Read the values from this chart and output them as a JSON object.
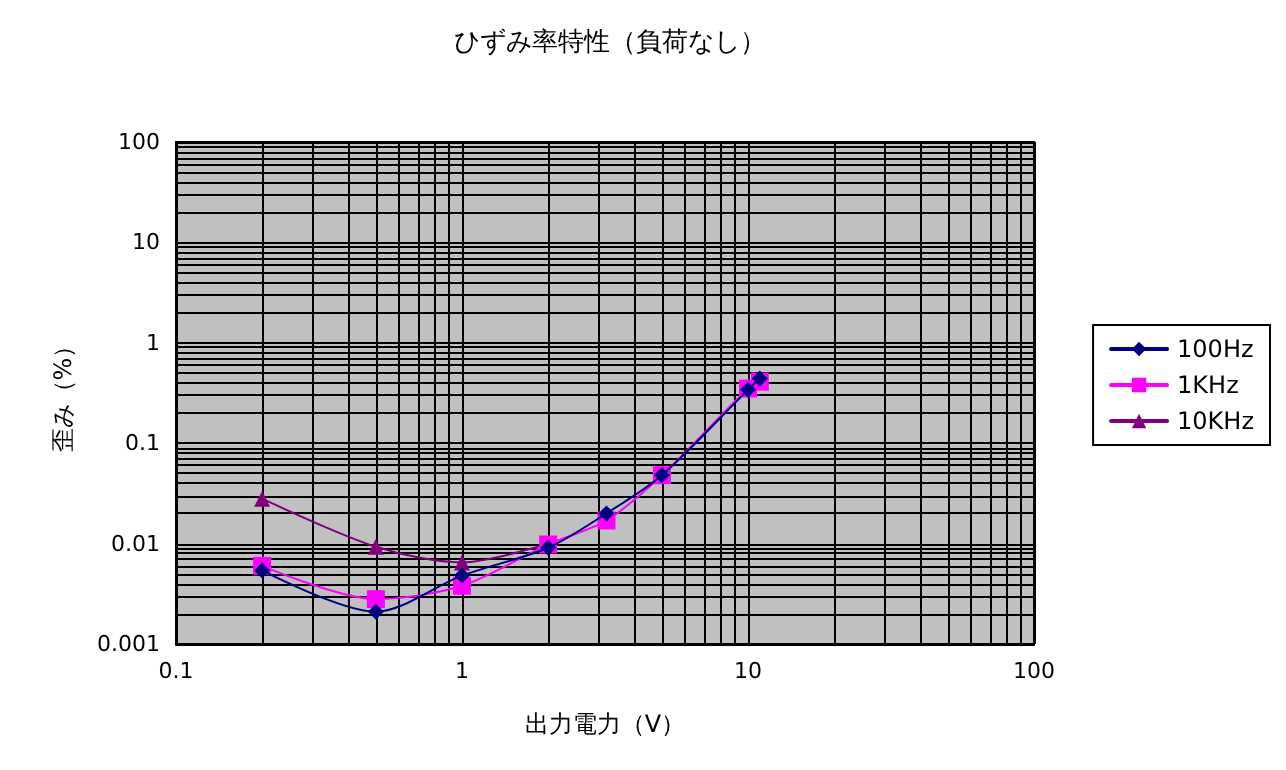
{
  "chart_data": {
    "type": "line",
    "title": "ひずみ率特性（負荷なし）",
    "xlabel": "出力電力（V）",
    "ylabel": "歪み（%）",
    "log": "xy",
    "grid": true,
    "legend": "right",
    "line_style": "solid",
    "xlim": [
      0.1,
      100
    ],
    "ylim": [
      0.001,
      100
    ],
    "xticks": [
      0.1,
      {
        "value": 0.2,
        "label": null
      },
      {
        "value": 0.3,
        "label": null
      },
      {
        "value": 0.4,
        "label": null
      },
      {
        "value": 0.5,
        "label": null
      },
      {
        "value": 0.6,
        "label": null
      },
      {
        "value": 0.7,
        "label": null
      },
      {
        "value": 0.8,
        "label": null
      },
      {
        "value": 0.9,
        "label": null
      },
      1,
      {
        "value": 2,
        "label": null
      },
      {
        "value": 3,
        "label": null
      },
      {
        "value": 4,
        "label": null
      },
      {
        "value": 5,
        "label": null
      },
      {
        "value": 6,
        "label": null
      },
      {
        "value": 7,
        "label": null
      },
      {
        "value": 8,
        "label": null
      },
      {
        "value": 9,
        "label": null
      },
      10,
      {
        "value": 20,
        "label": null
      },
      {
        "value": 30,
        "label": null
      },
      {
        "value": 40,
        "label": null
      },
      {
        "value": 50,
        "label": null
      },
      {
        "value": 60,
        "label": null
      },
      {
        "value": 70,
        "label": null
      },
      {
        "value": 80,
        "label": null
      },
      {
        "value": 90,
        "label": null
      },
      100
    ],
    "yticks": [
      0.001,
      {
        "value": 0.002,
        "label": null
      },
      {
        "value": 0.003,
        "label": null
      },
      {
        "value": 0.004,
        "label": null
      },
      {
        "value": 0.005,
        "label": null
      },
      {
        "value": 0.006,
        "label": null
      },
      {
        "value": 0.007,
        "label": null
      },
      {
        "value": 0.008,
        "label": null
      },
      {
        "value": 0.009,
        "label": null
      },
      0.01,
      {
        "value": 0.02,
        "label": null
      },
      {
        "value": 0.03,
        "label": null
      },
      {
        "value": 0.04,
        "label": null
      },
      {
        "value": 0.05,
        "label": null
      },
      {
        "value": 0.06,
        "label": null
      },
      {
        "value": 0.07,
        "label": null
      },
      {
        "value": 0.08,
        "label": null
      },
      {
        "value": 0.09,
        "label": null
      },
      0.1,
      {
        "value": 0.2,
        "label": null
      },
      {
        "value": 0.3,
        "label": null
      },
      {
        "value": 0.4,
        "label": null
      },
      {
        "value": 0.5,
        "label": null
      },
      {
        "value": 0.6,
        "label": null
      },
      {
        "value": 0.7,
        "label": null
      },
      {
        "value": 0.8,
        "label": null
      },
      {
        "value": 0.9,
        "label": null
      },
      1,
      {
        "value": 2,
        "label": null
      },
      {
        "value": 3,
        "label": null
      },
      {
        "value": 4,
        "label": null
      },
      {
        "value": 5,
        "label": null
      },
      {
        "value": 6,
        "label": null
      },
      {
        "value": 7,
        "label": null
      },
      {
        "value": 8,
        "label": null
      },
      {
        "value": 9,
        "label": null
      },
      10,
      {
        "value": 20,
        "label": null
      },
      {
        "value": 30,
        "label": null
      },
      {
        "value": 40,
        "label": null
      },
      {
        "value": 50,
        "label": null
      },
      {
        "value": 60,
        "label": null
      },
      {
        "value": 70,
        "label": null
      },
      {
        "value": 80,
        "label": null
      },
      {
        "value": 90,
        "label": null
      },
      100
    ],
    "series": [
      {
        "name": "100Hz",
        "color": "#000080",
        "marker": "diamond",
        "x": [
          0.2,
          0.5,
          1,
          2,
          3.2,
          5,
          10,
          11
        ],
        "values": [
          0.0054,
          0.0021,
          0.0048,
          0.0091,
          0.02,
          0.048,
          0.34,
          0.44
        ]
      },
      {
        "name": "1KHz",
        "color": "#ff00ff",
        "marker": "square",
        "x": [
          0.2,
          0.5,
          1,
          2,
          3.2,
          5,
          10,
          11
        ],
        "values": [
          0.006,
          0.0028,
          0.0038,
          0.0098,
          0.017,
          0.048,
          0.35,
          0.41
        ]
      },
      {
        "name": "10KHz",
        "color": "#800080",
        "marker": "triangle",
        "x": [
          0.2,
          0.5,
          1,
          2
        ],
        "values": [
          0.028,
          0.0093,
          0.0065,
          0.01
        ]
      }
    ]
  }
}
